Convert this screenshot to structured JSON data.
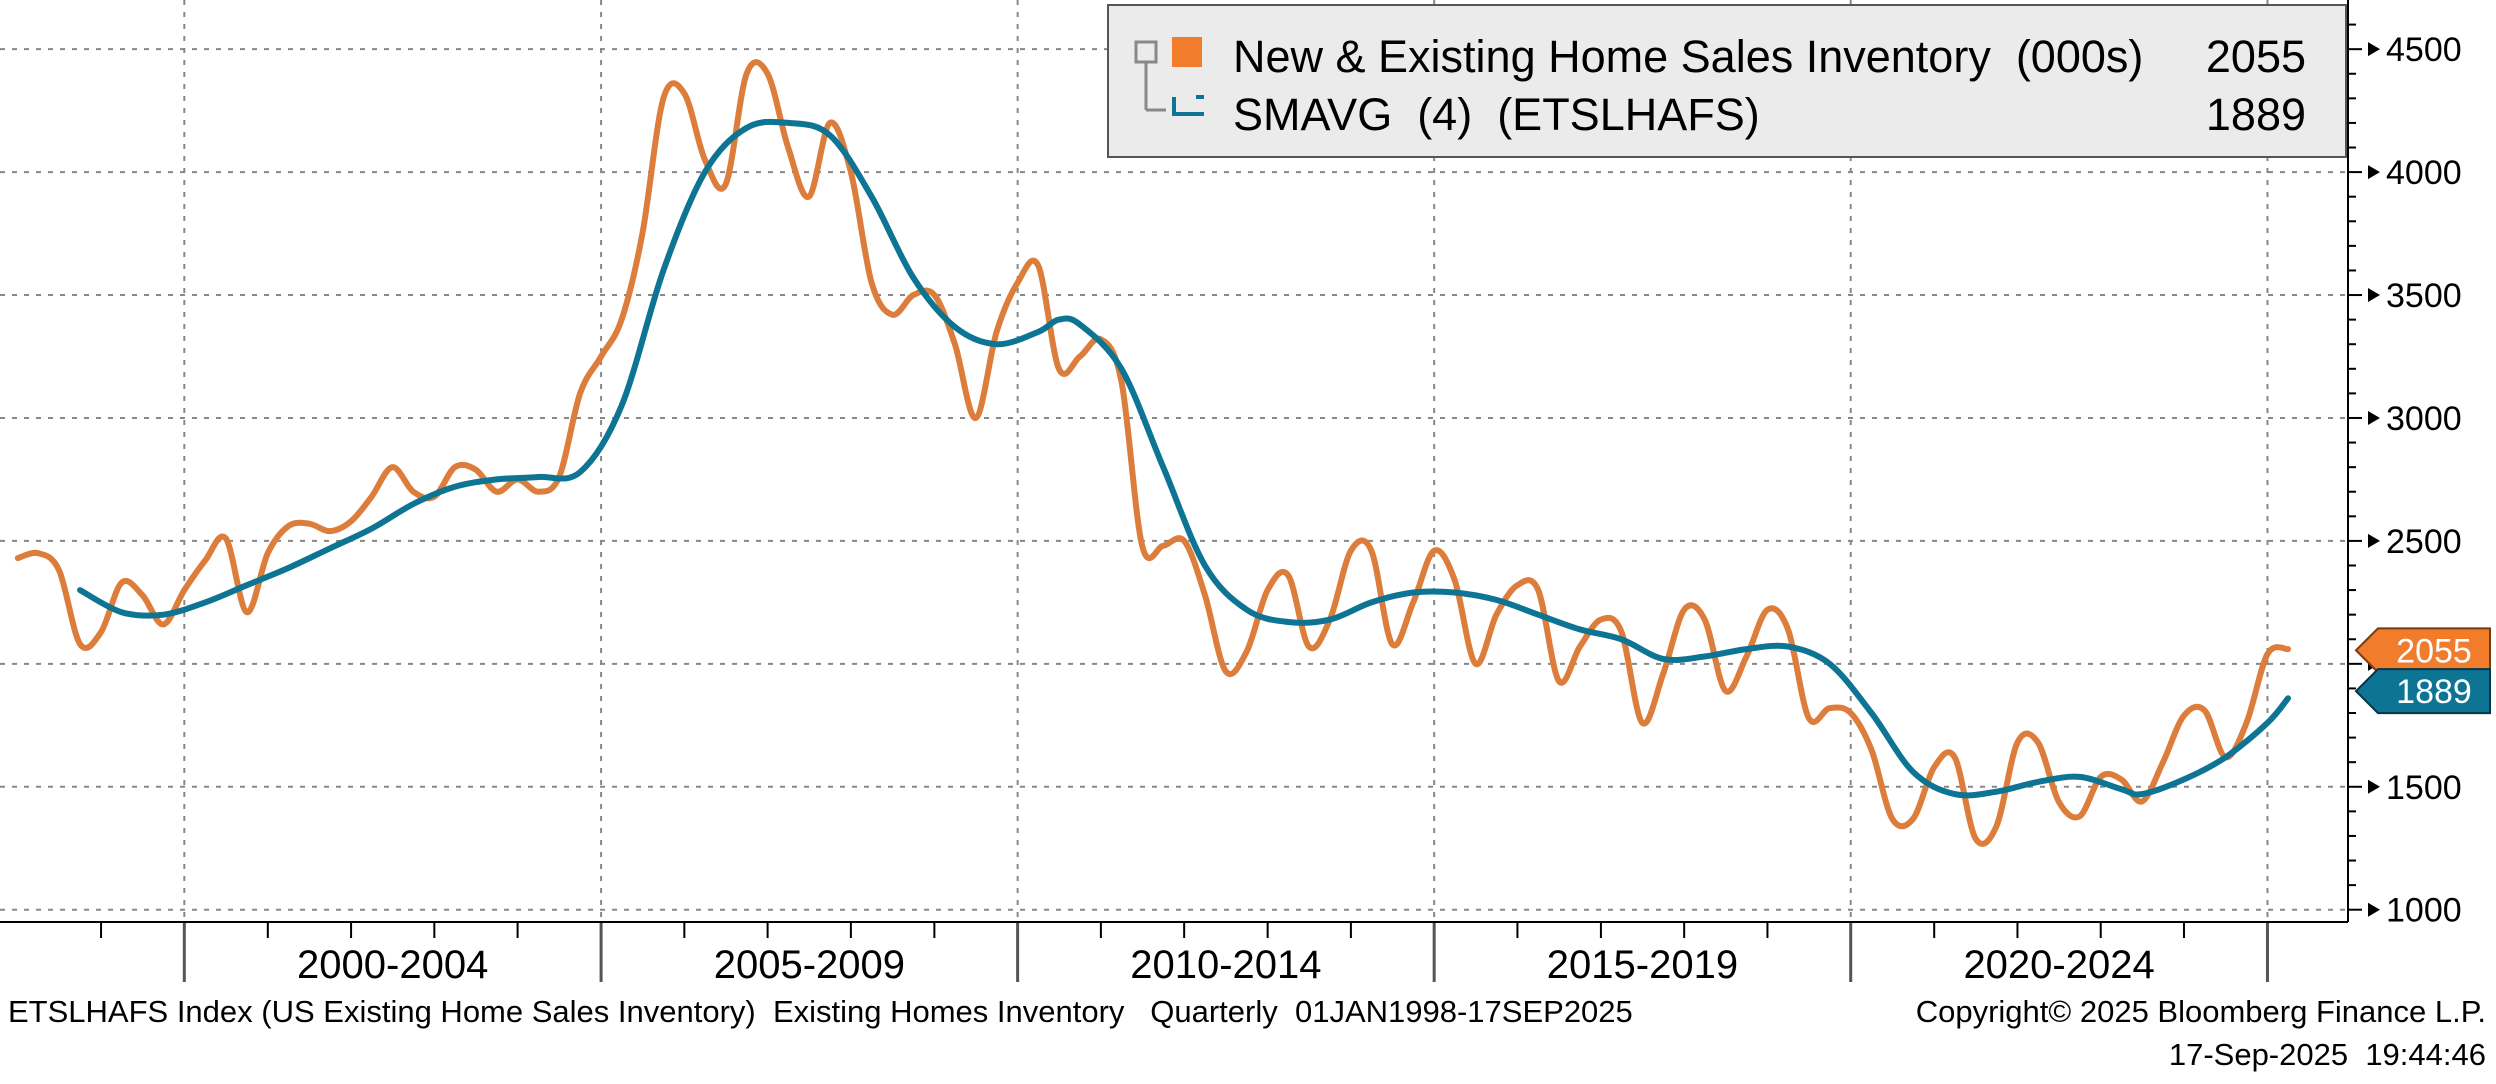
{
  "chart_data": {
    "type": "line",
    "title": "",
    "x_axis": {
      "type": "date",
      "range": [
        "1998-01-01",
        "2025-09-17"
      ],
      "period_labels": [
        "2000-2004",
        "2005-2009",
        "2010-2014",
        "2015-2019",
        "2020-2024"
      ]
    },
    "y_axis": {
      "position": "right",
      "ylim": [
        950,
        4700
      ],
      "ticks": [
        1000,
        1500,
        2000,
        2500,
        3000,
        3500,
        4000,
        4500
      ],
      "tick_labels": [
        "1000",
        "1500",
        "2000",
        "2500",
        "3000",
        "3500",
        "4000",
        "4500"
      ]
    },
    "grid": true,
    "legend_position": "top-right",
    "legend": [
      {
        "name": "New & Existing Home Sales Inventory  (000s)",
        "last_value": "2055",
        "color": "#dd7d3c"
      },
      {
        "name": "SMAVG  (4)  (ETSLHAFS)",
        "last_value": "1889",
        "color": "#0e7493"
      }
    ],
    "last_value_tags": [
      {
        "text": "2055",
        "value": 2055,
        "color": "#f17c2b"
      },
      {
        "text": "1889",
        "value": 1889,
        "color": "#0e7493"
      }
    ],
    "series": [
      {
        "name": "New & Existing Home Sales Inventory  (000s)",
        "color": "#dd7d3c",
        "points": [
          [
            "1998-01-01",
            2430
          ],
          [
            "1998-04-01",
            2450
          ],
          [
            "1998-07-01",
            2380
          ],
          [
            "1998-10-01",
            2080
          ],
          [
            "1999-01-01",
            2130
          ],
          [
            "1999-04-01",
            2330
          ],
          [
            "1999-07-01",
            2280
          ],
          [
            "1999-10-01",
            2160
          ],
          [
            "2000-01-01",
            2300
          ],
          [
            "2000-04-01",
            2420
          ],
          [
            "2000-07-01",
            2510
          ],
          [
            "2000-10-01",
            2210
          ],
          [
            "2001-01-01",
            2450
          ],
          [
            "2001-04-01",
            2560
          ],
          [
            "2001-07-01",
            2570
          ],
          [
            "2001-10-01",
            2540
          ],
          [
            "2002-01-01",
            2580
          ],
          [
            "2002-04-01",
            2680
          ],
          [
            "2002-07-01",
            2800
          ],
          [
            "2002-10-01",
            2700
          ],
          [
            "2003-01-01",
            2680
          ],
          [
            "2003-04-01",
            2800
          ],
          [
            "2003-07-01",
            2790
          ],
          [
            "2003-10-01",
            2700
          ],
          [
            "2004-01-01",
            2750
          ],
          [
            "2004-04-01",
            2700
          ],
          [
            "2004-07-01",
            2760
          ],
          [
            "2004-10-01",
            3100
          ],
          [
            "2005-01-01",
            3250
          ],
          [
            "2005-04-01",
            3400
          ],
          [
            "2005-07-01",
            3750
          ],
          [
            "2005-10-01",
            4300
          ],
          [
            "2006-01-01",
            4320
          ],
          [
            "2006-04-01",
            4050
          ],
          [
            "2006-07-01",
            3950
          ],
          [
            "2006-10-01",
            4400
          ],
          [
            "2007-01-01",
            4400
          ],
          [
            "2007-04-01",
            4100
          ],
          [
            "2007-07-01",
            3900
          ],
          [
            "2007-10-01",
            4200
          ],
          [
            "2008-01-01",
            4000
          ],
          [
            "2008-04-01",
            3550
          ],
          [
            "2008-07-01",
            3420
          ],
          [
            "2008-10-01",
            3500
          ],
          [
            "2009-01-01",
            3500
          ],
          [
            "2009-04-01",
            3300
          ],
          [
            "2009-07-01",
            3000
          ],
          [
            "2009-10-01",
            3350
          ],
          [
            "2010-01-01",
            3550
          ],
          [
            "2010-04-01",
            3620
          ],
          [
            "2010-07-01",
            3200
          ],
          [
            "2010-10-01",
            3250
          ],
          [
            "2011-01-01",
            3320
          ],
          [
            "2011-04-01",
            3150
          ],
          [
            "2011-07-01",
            2480
          ],
          [
            "2011-10-01",
            2480
          ],
          [
            "2012-01-01",
            2500
          ],
          [
            "2012-04-01",
            2280
          ],
          [
            "2012-07-01",
            1970
          ],
          [
            "2012-10-01",
            2050
          ],
          [
            "2013-01-01",
            2300
          ],
          [
            "2013-04-01",
            2360
          ],
          [
            "2013-07-01",
            2070
          ],
          [
            "2013-10-01",
            2180
          ],
          [
            "2014-01-01",
            2460
          ],
          [
            "2014-04-01",
            2460
          ],
          [
            "2014-07-01",
            2080
          ],
          [
            "2014-10-01",
            2250
          ],
          [
            "2015-01-01",
            2460
          ],
          [
            "2015-04-01",
            2340
          ],
          [
            "2015-07-01",
            2000
          ],
          [
            "2015-10-01",
            2200
          ],
          [
            "2016-01-01",
            2320
          ],
          [
            "2016-04-01",
            2300
          ],
          [
            "2016-07-01",
            1930
          ],
          [
            "2016-10-01",
            2070
          ],
          [
            "2017-01-01",
            2180
          ],
          [
            "2017-04-01",
            2130
          ],
          [
            "2017-07-01",
            1760
          ],
          [
            "2017-10-01",
            1960
          ],
          [
            "2018-01-01",
            2220
          ],
          [
            "2018-04-01",
            2180
          ],
          [
            "2018-07-01",
            1890
          ],
          [
            "2018-10-01",
            2030
          ],
          [
            "2019-01-01",
            2220
          ],
          [
            "2019-04-01",
            2140
          ],
          [
            "2019-07-01",
            1780
          ],
          [
            "2019-10-01",
            1820
          ],
          [
            "2020-01-01",
            1800
          ],
          [
            "2020-04-01",
            1650
          ],
          [
            "2020-07-01",
            1370
          ],
          [
            "2020-10-01",
            1370
          ],
          [
            "2021-01-01",
            1580
          ],
          [
            "2021-04-01",
            1620
          ],
          [
            "2021-07-01",
            1290
          ],
          [
            "2021-10-01",
            1340
          ],
          [
            "2022-01-01",
            1680
          ],
          [
            "2022-04-01",
            1680
          ],
          [
            "2022-07-01",
            1440
          ],
          [
            "2022-10-01",
            1380
          ],
          [
            "2023-01-01",
            1540
          ],
          [
            "2023-04-01",
            1530
          ],
          [
            "2023-07-01",
            1440
          ],
          [
            "2023-10-01",
            1600
          ],
          [
            "2024-01-01",
            1790
          ],
          [
            "2024-04-01",
            1810
          ],
          [
            "2024-07-01",
            1620
          ],
          [
            "2024-10-01",
            1760
          ],
          [
            "2025-01-01",
            2040
          ],
          [
            "2025-04-01",
            2060
          ]
        ]
      },
      {
        "name": "SMAVG  (4)  (ETSLHAFS)",
        "color": "#0e7493",
        "points": [
          [
            "1998-10-01",
            2300
          ],
          [
            "1999-04-01",
            2210
          ],
          [
            "1999-10-01",
            2200
          ],
          [
            "2000-04-01",
            2250
          ],
          [
            "2000-10-01",
            2320
          ],
          [
            "2001-04-01",
            2390
          ],
          [
            "2001-10-01",
            2470
          ],
          [
            "2002-04-01",
            2550
          ],
          [
            "2002-10-01",
            2650
          ],
          [
            "2003-04-01",
            2720
          ],
          [
            "2003-10-01",
            2750
          ],
          [
            "2004-04-01",
            2760
          ],
          [
            "2004-10-01",
            2780
          ],
          [
            "2005-04-01",
            3050
          ],
          [
            "2005-10-01",
            3600
          ],
          [
            "2006-04-01",
            4000
          ],
          [
            "2006-10-01",
            4180
          ],
          [
            "2007-04-01",
            4200
          ],
          [
            "2007-10-01",
            4150
          ],
          [
            "2008-04-01",
            3900
          ],
          [
            "2008-10-01",
            3570
          ],
          [
            "2009-04-01",
            3370
          ],
          [
            "2009-10-01",
            3300
          ],
          [
            "2010-04-01",
            3350
          ],
          [
            "2010-07-01",
            3400
          ],
          [
            "2010-10-01",
            3380
          ],
          [
            "2011-04-01",
            3200
          ],
          [
            "2011-10-01",
            2800
          ],
          [
            "2012-04-01",
            2400
          ],
          [
            "2012-10-01",
            2220
          ],
          [
            "2013-04-01",
            2170
          ],
          [
            "2013-10-01",
            2180
          ],
          [
            "2014-04-01",
            2250
          ],
          [
            "2014-10-01",
            2290
          ],
          [
            "2015-04-01",
            2290
          ],
          [
            "2015-10-01",
            2260
          ],
          [
            "2016-04-01",
            2200
          ],
          [
            "2016-10-01",
            2140
          ],
          [
            "2017-04-01",
            2100
          ],
          [
            "2017-10-01",
            2020
          ],
          [
            "2018-04-01",
            2030
          ],
          [
            "2018-10-01",
            2060
          ],
          [
            "2019-04-01",
            2070
          ],
          [
            "2019-10-01",
            2000
          ],
          [
            "2020-04-01",
            1800
          ],
          [
            "2020-10-01",
            1560
          ],
          [
            "2021-04-01",
            1470
          ],
          [
            "2021-10-01",
            1480
          ],
          [
            "2022-04-01",
            1520
          ],
          [
            "2022-10-01",
            1540
          ],
          [
            "2023-04-01",
            1490
          ],
          [
            "2023-07-01",
            1470
          ],
          [
            "2024-01-01",
            1530
          ],
          [
            "2024-07-01",
            1620
          ],
          [
            "2025-01-01",
            1760
          ],
          [
            "2025-04-01",
            1860
          ]
        ]
      }
    ],
    "footer": {
      "left": "ETSLHAFS Index (US Existing Home Sales Inventory)  Existing Homes Inventory   Quarterly  01JAN1998-17SEP2025",
      "right": "Copyright© 2025 Bloomberg Finance L.P.",
      "timestamp": "17-Sep-2025  19:44:46"
    }
  }
}
